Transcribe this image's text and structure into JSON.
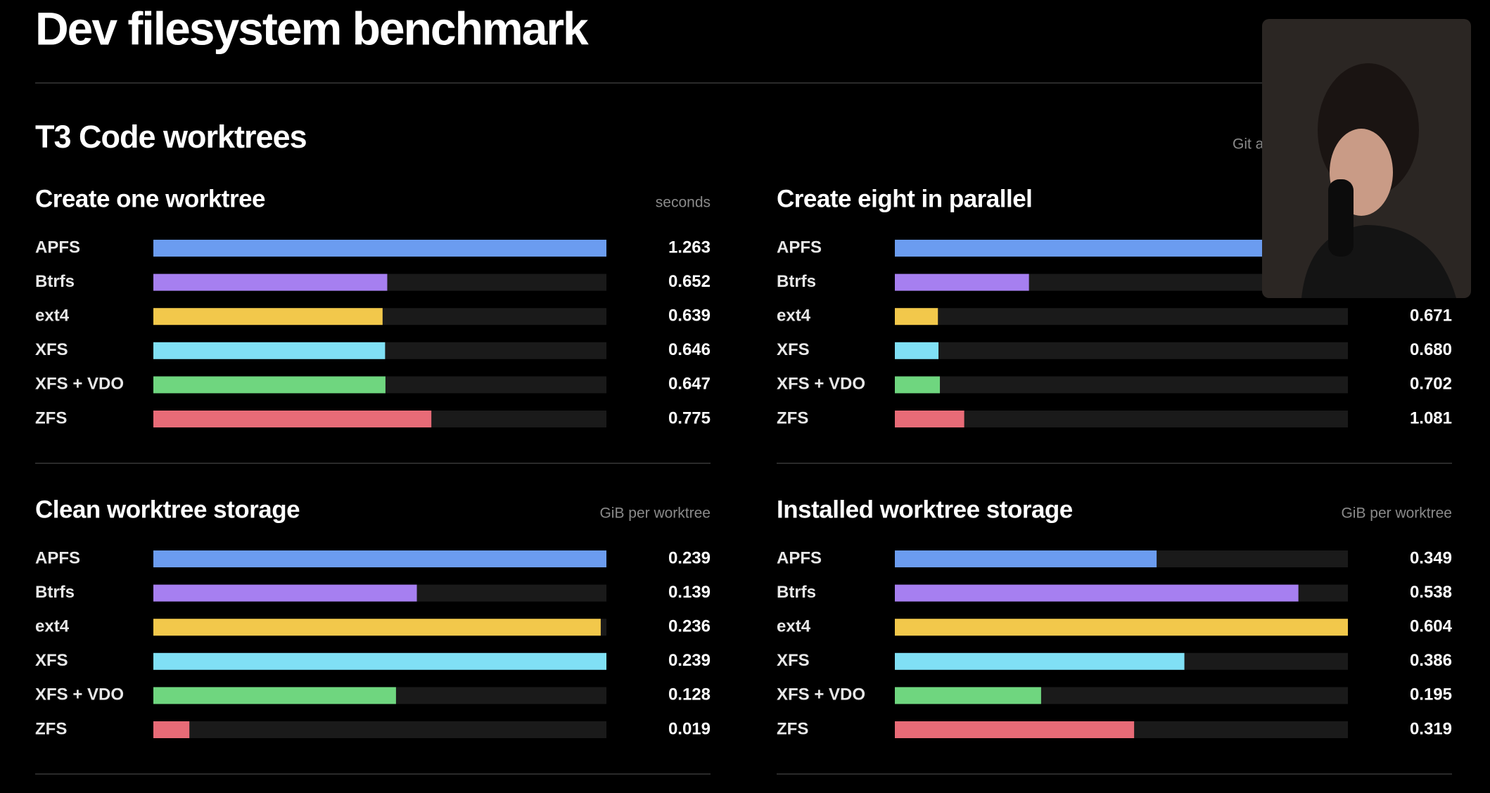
{
  "header": {
    "title": "Dev filesystem benchmark"
  },
  "section": {
    "title": "T3 Code worktrees",
    "note": "Git a"
  },
  "chart_data": [
    {
      "type": "bar",
      "title": "Create one worktree",
      "unit": "seconds",
      "categories": [
        "APFS",
        "Btrfs",
        "ext4",
        "XFS",
        "XFS + VDO",
        "ZFS"
      ],
      "values": [
        1.263,
        0.652,
        0.639,
        0.646,
        0.647,
        0.775
      ],
      "value_labels": [
        "1.263",
        "0.652",
        "0.639",
        "0.646",
        "0.647",
        "0.775"
      ],
      "colors": [
        "#6b9cf0",
        "#a67ff0",
        "#f2c84b",
        "#80e0f5",
        "#6fd67f",
        "#e86b77"
      ]
    },
    {
      "type": "bar",
      "title": "Create eight in parallel",
      "categories": [
        "APFS",
        "Btrfs",
        "ext4",
        "XFS",
        "XFS + VDO",
        "ZFS"
      ],
      "values": [
        7.06,
        2.09,
        0.671,
        0.68,
        0.702,
        1.081
      ],
      "value_labels": [
        null,
        null,
        "0.671",
        "0.680",
        "0.702",
        "1.081"
      ],
      "colors": [
        "#6b9cf0",
        "#a67ff0",
        "#f2c84b",
        "#80e0f5",
        "#6fd67f",
        "#e86b77"
      ]
    },
    {
      "type": "bar",
      "title": "Clean worktree storage",
      "unit": "GiB per worktree",
      "categories": [
        "APFS",
        "Btrfs",
        "ext4",
        "XFS",
        "XFS + VDO",
        "ZFS"
      ],
      "values": [
        0.239,
        0.139,
        0.236,
        0.239,
        0.128,
        0.019
      ],
      "value_labels": [
        "0.239",
        "0.139",
        "0.236",
        "0.239",
        "0.128",
        "0.019"
      ],
      "colors": [
        "#6b9cf0",
        "#a67ff0",
        "#f2c84b",
        "#80e0f5",
        "#6fd67f",
        "#e86b77"
      ]
    },
    {
      "type": "bar",
      "title": "Installed worktree storage",
      "unit": "GiB per worktree",
      "categories": [
        "APFS",
        "Btrfs",
        "ext4",
        "XFS",
        "XFS + VDO",
        "ZFS"
      ],
      "values": [
        0.349,
        0.538,
        0.604,
        0.386,
        0.195,
        0.319
      ],
      "value_labels": [
        "0.349",
        "0.538",
        "0.604",
        "0.386",
        "0.195",
        "0.319"
      ],
      "colors": [
        "#6b9cf0",
        "#a67ff0",
        "#f2c84b",
        "#80e0f5",
        "#6fd67f",
        "#e86b77"
      ]
    }
  ]
}
